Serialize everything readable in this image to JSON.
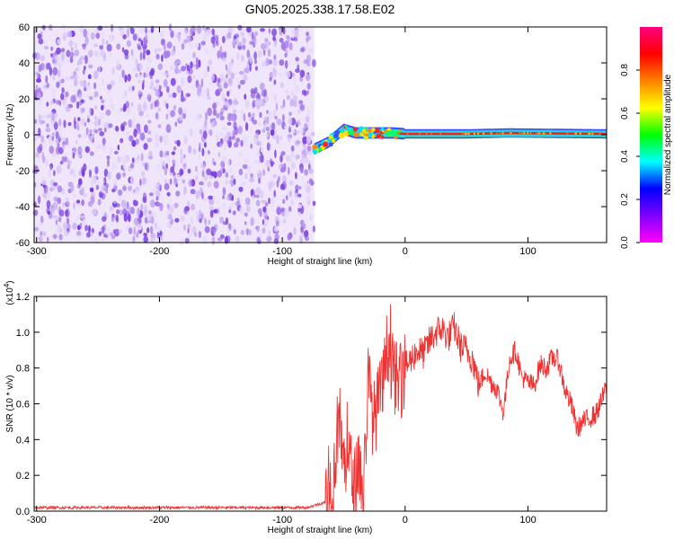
{
  "title": "GN05.2025.338.17.58.E02",
  "chart_data": [
    {
      "type": "heatmap",
      "xlabel": "Height of straight line (km)",
      "ylabel": "Frequency (Hz)",
      "xlim": [
        -302,
        164
      ],
      "ylim": [
        -60,
        60
      ],
      "xticks": [
        -300,
        -200,
        -100,
        0,
        100
      ],
      "yticks": [
        -60,
        -40,
        -20,
        0,
        20,
        40,
        60
      ],
      "colorbar": {
        "label": "Normalized spectral amplitude",
        "range": [
          0,
          1
        ],
        "ticks": [
          "0.0",
          "0.2",
          "0.4",
          "0.6",
          "0.8"
        ],
        "colors": [
          "#ff00ff",
          "#8000ff",
          "#0000ff",
          "#00ffff",
          "#00ff00",
          "#ffff00",
          "#ff8000",
          "#ff0000",
          "#ff0080"
        ]
      },
      "noise_region_x": [
        -302,
        -74
      ],
      "signal_center": [
        {
          "x": -74,
          "f": -8
        },
        {
          "x": -62,
          "f": -4
        },
        {
          "x": -50,
          "f": 3
        },
        {
          "x": -40,
          "f": 1
        },
        {
          "x": -25,
          "f": 1
        },
        {
          "x": -10,
          "f": 1
        },
        {
          "x": 0,
          "f": 0.5
        },
        {
          "x": 50,
          "f": 0.5
        },
        {
          "x": 85,
          "f": 1
        },
        {
          "x": 164,
          "f": 0.5
        }
      ],
      "grid": false
    },
    {
      "type": "line",
      "xlabel": "Height of straight line (km)",
      "ylabel": "SNR (10 * v/v)",
      "y_multiplier": "(x10",
      "y_multiplier_exp": "4",
      "y_multiplier_close": ")",
      "xlim": [
        -302,
        164
      ],
      "ylim": [
        0,
        1.2
      ],
      "xticks": [
        -300,
        -200,
        -100,
        0,
        100
      ],
      "yticks": [
        "0.0",
        "0.2",
        "0.4",
        "0.6",
        "0.8",
        "1.0",
        "1.2"
      ],
      "color": "#ee3333",
      "series": [
        {
          "x": [
            -302,
            -250,
            -200,
            -150,
            -100,
            -80,
            -65,
            -58,
            -54,
            -50,
            -46,
            -42,
            -38,
            -34,
            -30,
            -26,
            -22,
            -18,
            -14,
            -10,
            -5,
            0,
            5,
            10,
            15,
            20,
            25,
            30,
            35,
            40,
            45,
            50,
            55,
            60,
            65,
            70,
            75,
            80,
            85,
            90,
            95,
            100,
            105,
            110,
            115,
            120,
            125,
            130,
            135,
            140,
            145,
            150,
            155,
            160,
            164
          ],
          "y": [
            0.02,
            0.02,
            0.02,
            0.02,
            0.02,
            0.02,
            0.05,
            0.2,
            0.55,
            0.25,
            0.35,
            0.1,
            0.3,
            0.08,
            0.75,
            0.5,
            0.6,
            0.7,
            0.95,
            0.78,
            0.7,
            0.8,
            0.85,
            0.9,
            0.88,
            0.95,
            1.0,
            1.02,
            0.97,
            1.03,
            0.92,
            0.9,
            0.85,
            0.7,
            0.78,
            0.72,
            0.68,
            0.55,
            0.85,
            0.9,
            0.75,
            0.72,
            0.7,
            0.82,
            0.8,
            0.86,
            0.84,
            0.68,
            0.6,
            0.46,
            0.5,
            0.52,
            0.54,
            0.62,
            0.7
          ]
        }
      ],
      "grid": false
    }
  ]
}
